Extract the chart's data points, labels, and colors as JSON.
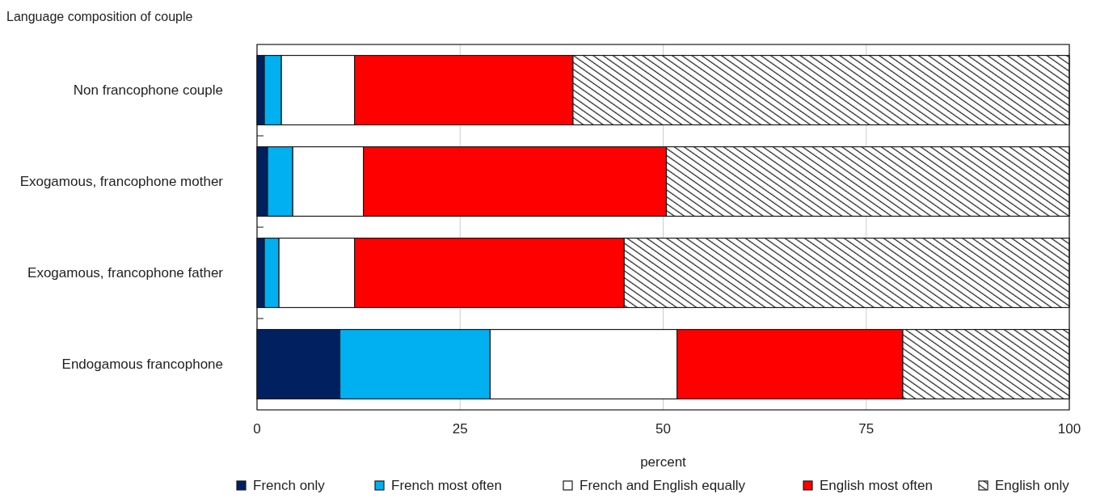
{
  "chart_data": {
    "type": "bar",
    "orientation": "horizontal",
    "stacked": true,
    "ylabel": "Language composition of couple",
    "xlabel": "percent",
    "categories": [
      "Non francophone couple",
      "Exogamous, francophone mother",
      "Exogamous, francophone father",
      "Endogamous francophone"
    ],
    "series": [
      {
        "name": "French only",
        "color": "#002060",
        "values": [
          0.9,
          1.3,
          0.9,
          10.2
        ]
      },
      {
        "name": "French most often",
        "color": "#00b0f0",
        "values": [
          2.1,
          3.1,
          1.8,
          18.5
        ]
      },
      {
        "name": "French and English equally",
        "color": "#ffffff",
        "values": [
          9.0,
          8.7,
          9.3,
          23.0
        ]
      },
      {
        "name": "English most often",
        "color": "#ff0000",
        "values": [
          26.9,
          37.3,
          33.2,
          27.8
        ]
      },
      {
        "name": "English only",
        "color": "#1a1a1a",
        "values": [
          61.1,
          49.6,
          54.8,
          20.5
        ]
      }
    ],
    "xlim": [
      0,
      100
    ],
    "xticks": [
      0,
      25,
      50,
      75,
      100
    ],
    "grid": "x",
    "legend": "bottom"
  }
}
